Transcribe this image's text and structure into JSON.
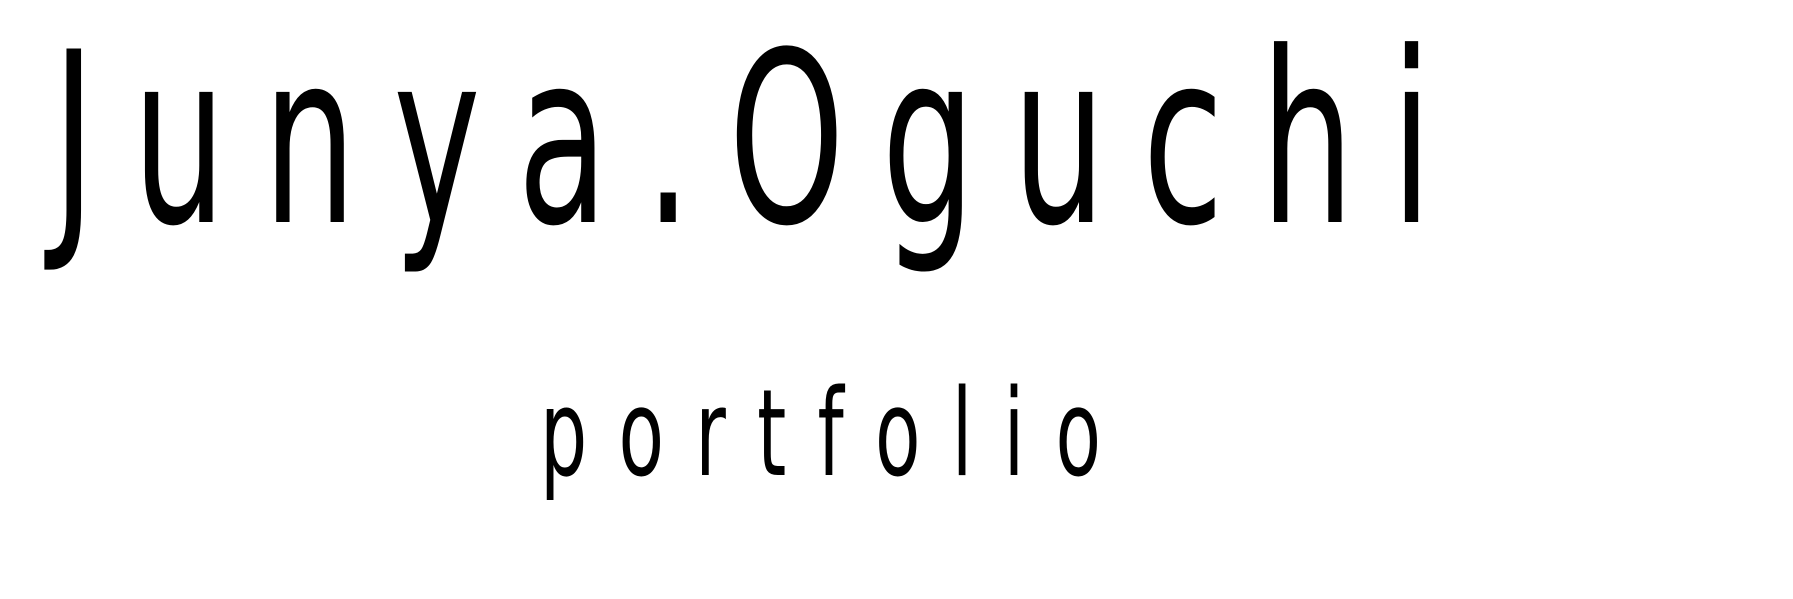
{
  "header": {
    "name": "Junya.Oguchi",
    "subtitle": "portfolio"
  },
  "colors": {
    "text": "#000000",
    "background": "#ffffff"
  }
}
